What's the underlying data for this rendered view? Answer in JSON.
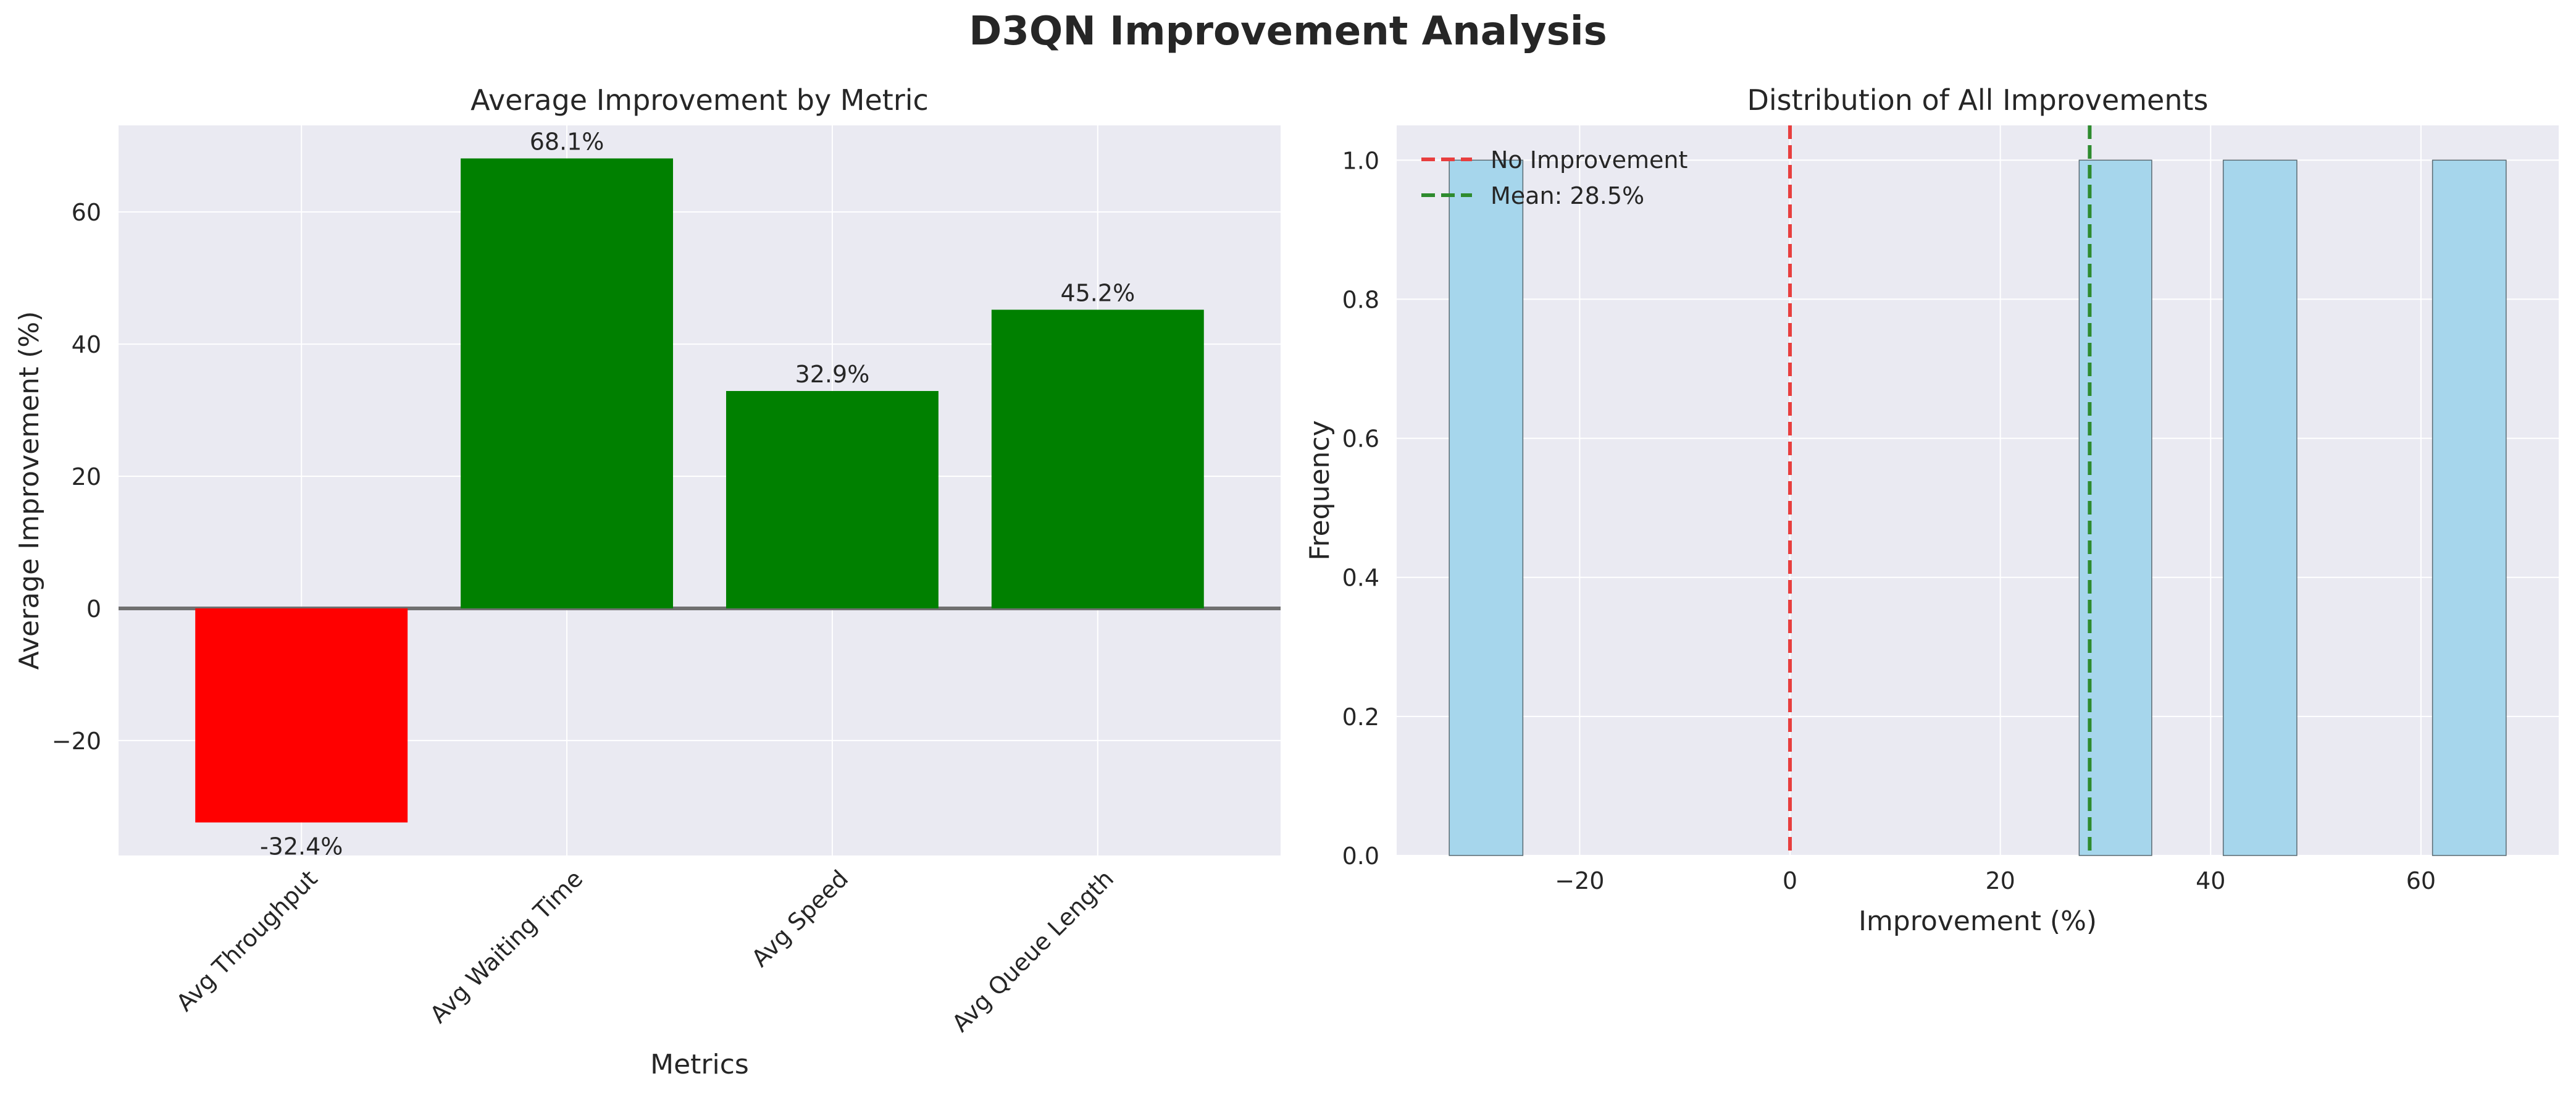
{
  "figure": {
    "title": "D3QN Improvement Analysis"
  },
  "colors": {
    "background": "#eaeaf2",
    "grid": "#ffffff",
    "positive": "#008000",
    "negative": "#ff0000",
    "hist": "#a6d6ec",
    "no_improvement": "#e83e3e",
    "mean": "#2e8b2e",
    "zero_line": "#707070"
  },
  "chart_data": [
    {
      "type": "bar",
      "title": "Average Improvement by Metric",
      "xlabel": "Metrics",
      "ylabel": "Average Improvement (%)",
      "categories": [
        "Avg Throughput",
        "Avg Waiting Time",
        "Avg Speed",
        "Avg Queue Length"
      ],
      "values": [
        -32.4,
        68.1,
        32.9,
        45.2
      ],
      "value_labels": [
        "-32.4%",
        "68.1%",
        "32.9%",
        "45.2%"
      ],
      "bar_colors": [
        "#ff0000",
        "#008000",
        "#008000",
        "#008000"
      ],
      "ylim": [
        -37.4,
        73.1
      ],
      "yticks": [
        -20,
        0,
        20,
        40,
        60
      ],
      "ytick_labels": [
        "−20",
        "0",
        "20",
        "40",
        "60"
      ],
      "grid": true,
      "reference_line_y": 0
    },
    {
      "type": "histogram",
      "title": "Distribution of All Improvements",
      "xlabel": "Improvement (%)",
      "ylabel": "Frequency",
      "bins": [
        {
          "start": -32.4,
          "end": -25.4,
          "count": 1
        },
        {
          "start": 27.5,
          "end": 34.4,
          "count": 1
        },
        {
          "start": 41.2,
          "end": 48.2,
          "count": 1
        },
        {
          "start": 61.1,
          "end": 68.1,
          "count": 1
        }
      ],
      "xlim": [
        -37.4,
        73.1
      ],
      "xticks": [
        -20,
        0,
        20,
        40,
        60
      ],
      "xtick_labels": [
        "−20",
        "0",
        "20",
        "40",
        "60"
      ],
      "ylim": [
        0,
        1.05
      ],
      "yticks": [
        0.0,
        0.2,
        0.4,
        0.6,
        0.8,
        1.0
      ],
      "ytick_labels": [
        "0.0",
        "0.2",
        "0.4",
        "0.6",
        "0.8",
        "1.0"
      ],
      "grid": true,
      "vlines": [
        {
          "x": 0,
          "label": "No Improvement",
          "color": "#e83e3e"
        },
        {
          "x": 28.5,
          "label": "Mean: 28.5%",
          "color": "#2e8b2e"
        }
      ],
      "legend": "top-left"
    }
  ]
}
